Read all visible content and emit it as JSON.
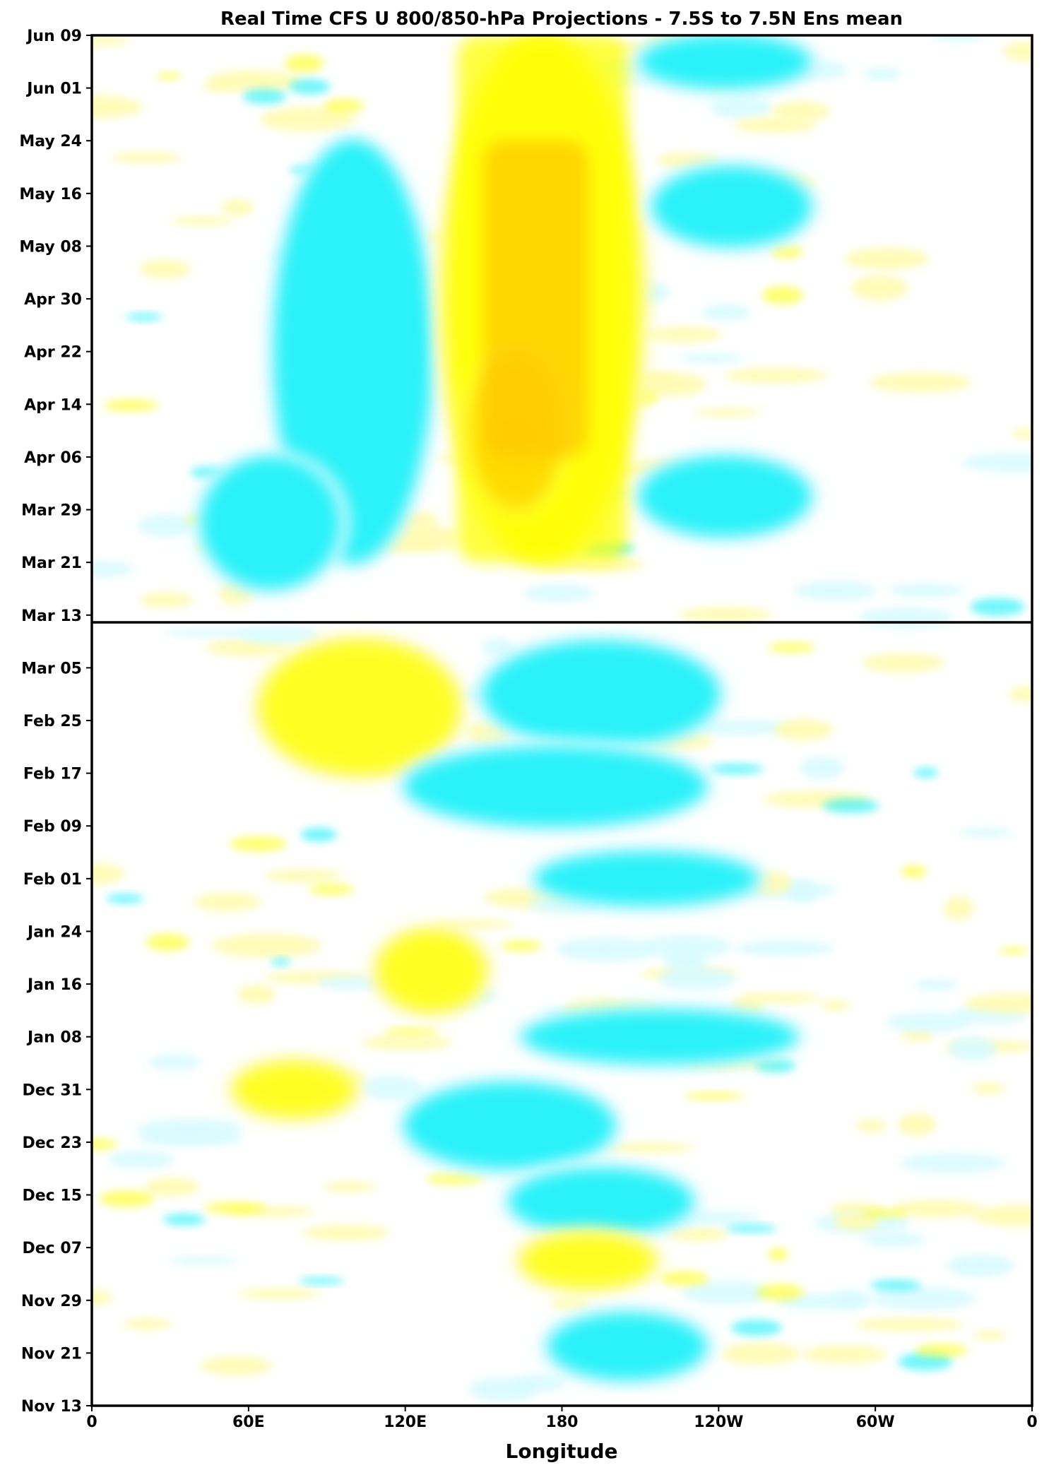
{
  "chart_data": {
    "type": "heatmap",
    "title": "Real Time CFS U 800/850-hPa Projections - 7.5S to 7.5N Ens mean",
    "xlabel": "Longitude",
    "ylabel": "",
    "x_ticks": [
      "0",
      "60E",
      "120E",
      "180",
      "120W",
      "60W",
      "0"
    ],
    "y_ticks": [
      "Nov 13",
      "Nov 21",
      "Nov 29",
      "Dec 07",
      "Dec 15",
      "Dec 23",
      "Dec 31",
      "Jan 08",
      "Jan 16",
      "Jan 24",
      "Feb 01",
      "Feb 09",
      "Feb 17",
      "Feb 25",
      "Mar 05",
      "Mar 13",
      "Mar 21",
      "Mar 29",
      "Apr 06",
      "Apr 14",
      "Apr 22",
      "Apr 30",
      "May 08",
      "May 16",
      "May 24",
      "Jun 01",
      "Jun 09"
    ],
    "xlim": [
      0,
      360
    ],
    "forecast_start": "Mar 13",
    "colors": {
      "positive_weak": "#fffbb0",
      "positive": "#ffff00",
      "positive_strong": "#ffc800",
      "positive_max": "#ff6a00",
      "negative_weak": "#d8fbff",
      "negative": "#00f0f8",
      "background": "#ffffff"
    },
    "anomaly_features": [
      {
        "sign": "negative",
        "lon": [
          70,
          130
        ],
        "date": [
          "Mar 21",
          "May 24"
        ]
      },
      {
        "sign": "negative",
        "lon": [
          42,
          95
        ],
        "date": [
          "Mar 17",
          "Apr 06"
        ]
      },
      {
        "sign": "positive",
        "lon": [
          135,
          210
        ],
        "date": [
          "Mar 21",
          "Jun 09"
        ]
      },
      {
        "sign": "positive_max",
        "lon": [
          145,
          180
        ],
        "date": [
          "Mar 29",
          "Apr 22"
        ]
      },
      {
        "sign": "negative",
        "lon": [
          210,
          275
        ],
        "date": [
          "Mar 25",
          "Apr 06"
        ]
      },
      {
        "sign": "negative",
        "lon": [
          215,
          275
        ],
        "date": [
          "May 08",
          "May 20"
        ]
      },
      {
        "sign": "negative",
        "lon": [
          210,
          275
        ],
        "date": [
          "Jun 01",
          "Jun 09"
        ]
      },
      {
        "sign": "positive",
        "lon": [
          65,
          140
        ],
        "date": [
          "Feb 17",
          "Mar 09"
        ]
      },
      {
        "sign": "negative",
        "lon": [
          150,
          240
        ],
        "date": [
          "Feb 21",
          "Mar 09"
        ]
      },
      {
        "sign": "negative",
        "lon": [
          120,
          235
        ],
        "date": [
          "Feb 09",
          "Feb 21"
        ]
      },
      {
        "sign": "negative",
        "lon": [
          170,
          255
        ],
        "date": [
          "Jan 28",
          "Feb 05"
        ]
      },
      {
        "sign": "positive",
        "lon": [
          110,
          150
        ],
        "date": [
          "Jan 12",
          "Jan 24"
        ]
      },
      {
        "sign": "negative",
        "lon": [
          165,
          270
        ],
        "date": [
          "Jan 04",
          "Jan 12"
        ]
      },
      {
        "sign": "positive",
        "lon": [
          55,
          100
        ],
        "date": [
          "Dec 27",
          "Jan 04"
        ]
      },
      {
        "sign": "negative",
        "lon": [
          120,
          200
        ],
        "date": [
          "Dec 19",
          "Jan 01"
        ]
      },
      {
        "sign": "negative",
        "lon": [
          160,
          230
        ],
        "date": [
          "Dec 09",
          "Dec 19"
        ]
      },
      {
        "sign": "positive",
        "lon": [
          165,
          215
        ],
        "date": [
          "Dec 01",
          "Dec 09"
        ]
      },
      {
        "sign": "negative",
        "lon": [
          175,
          235
        ],
        "date": [
          "Nov 17",
          "Nov 27"
        ]
      }
    ]
  }
}
